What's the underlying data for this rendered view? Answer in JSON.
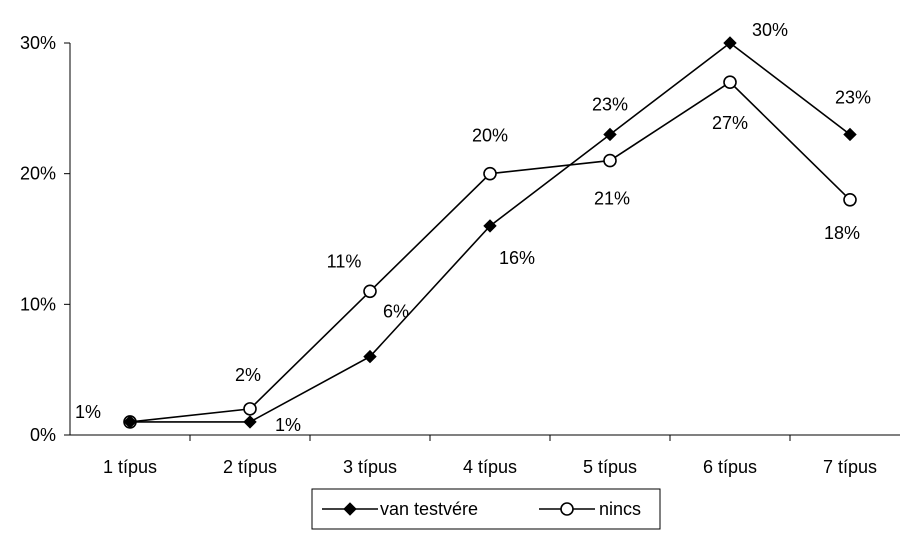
{
  "chart_data": {
    "type": "line",
    "categories": [
      "1 típus",
      "2 típus",
      "3 típus",
      "4 típus",
      "5 típus",
      "6 típus",
      "7 típus"
    ],
    "ylim": [
      0,
      30
    ],
    "yticks": [
      0,
      10,
      20,
      30
    ],
    "ytick_labels": [
      "0%",
      "10%",
      "20%",
      "30%"
    ],
    "grid": false,
    "legend_position": "bottom",
    "series": [
      {
        "name": "van testvére",
        "marker": "filled-diamond",
        "color": "#000000",
        "values": [
          1,
          1,
          6,
          16,
          23,
          30,
          23
        ],
        "labels": [
          "1%",
          "1%",
          "6%",
          "16%",
          "23%",
          "30%",
          "23%"
        ]
      },
      {
        "name": "nincs",
        "marker": "open-circle",
        "color": "#000000",
        "values": [
          1,
          2,
          11,
          20,
          21,
          27,
          18
        ],
        "labels": [
          "1%",
          "2%",
          "11%",
          "20%",
          "21%",
          "27%",
          "18%"
        ]
      }
    ]
  }
}
